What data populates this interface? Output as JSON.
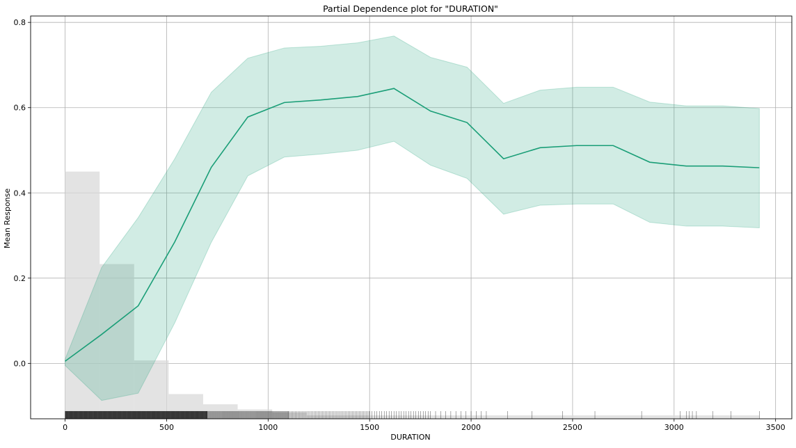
{
  "chart_data": {
    "type": "line",
    "title": "Partial Dependence plot for \"DURATION\"",
    "xlabel": "DURATION",
    "ylabel": "Mean Response",
    "xlim": [
      -170,
      3580
    ],
    "ylim": [
      -0.13,
      0.815
    ],
    "xticks": [
      0,
      500,
      1000,
      1500,
      2000,
      2500,
      3000,
      3500
    ],
    "yticks": [
      0.0,
      0.2,
      0.4,
      0.6,
      0.8
    ],
    "xtick_labels": [
      "0",
      "500",
      "1000",
      "1500",
      "2000",
      "2500",
      "3000",
      "3500"
    ],
    "ytick_labels": [
      "0.0",
      "0.2",
      "0.4",
      "0.6",
      "0.8"
    ],
    "grid": true,
    "line_color": "#1a9e77",
    "band_color": "#1a9e77",
    "histogram_color": "#d9d9d9",
    "rug_color": "#000000",
    "series": [
      {
        "x": [
          0,
          180,
          360,
          540,
          720,
          900,
          1080,
          1260,
          1440,
          1620,
          1800,
          1980,
          2160,
          2340,
          2520,
          2700,
          2880,
          3060,
          3240,
          3420
        ],
        "values": [
          0.005,
          0.068,
          0.135,
          0.285,
          0.46,
          0.578,
          0.612,
          0.618,
          0.626,
          0.645,
          0.592,
          0.565,
          0.48,
          0.506,
          0.511,
          0.511,
          0.472,
          0.463,
          0.463,
          0.459
        ],
        "upper": [
          0.01,
          0.225,
          0.342,
          0.48,
          0.636,
          0.716,
          0.74,
          0.744,
          0.752,
          0.768,
          0.718,
          0.695,
          0.61,
          0.641,
          0.648,
          0.648,
          0.613,
          0.604,
          0.604,
          0.598
        ],
        "lower": [
          -0.005,
          -0.087,
          -0.07,
          0.095,
          0.284,
          0.44,
          0.484,
          0.491,
          0.5,
          0.521,
          0.465,
          0.434,
          0.35,
          0.371,
          0.374,
          0.374,
          0.331,
          0.322,
          0.322,
          0.318
        ]
      }
    ],
    "histogram": {
      "bins": [
        {
          "x0": 0,
          "x1": 170,
          "top": 0.45
        },
        {
          "x0": 170,
          "x1": 340,
          "top": 0.233
        },
        {
          "x0": 340,
          "x1": 510,
          "top": 0.007
        },
        {
          "x0": 510,
          "x1": 680,
          "top": -0.072
        },
        {
          "x0": 680,
          "x1": 850,
          "top": -0.096
        },
        {
          "x0": 850,
          "x1": 1020,
          "top": -0.108
        },
        {
          "x0": 1020,
          "x1": 1190,
          "top": -0.115
        },
        {
          "x0": 1190,
          "x1": 3420,
          "top": -0.122
        }
      ]
    },
    "rug": {
      "y_bottom": -0.13,
      "y_top": -0.112,
      "dense_ranges": [
        [
          0,
          700,
          1.2
        ],
        [
          700,
          1100,
          3.5
        ],
        [
          1100,
          1500,
          7
        ],
        [
          1500,
          1800,
          12
        ],
        [
          1800,
          2100,
          25
        ]
      ],
      "sparse_points": [
        2180,
        2300,
        2450,
        2610,
        2840,
        3030,
        3060,
        3075,
        3090,
        3110,
        3190,
        3280,
        3420
      ]
    }
  }
}
